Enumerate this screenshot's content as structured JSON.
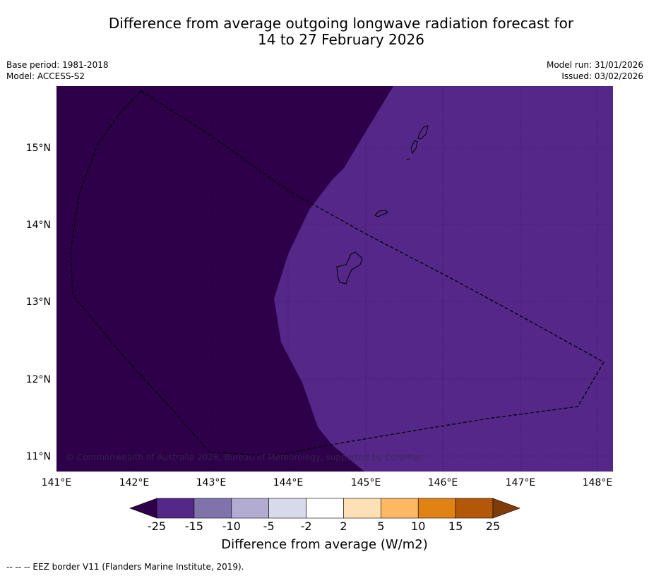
{
  "title": {
    "line1": "Difference from average outgoing longwave radiation forecast for",
    "line2": "14 to 27 February 2026"
  },
  "meta": {
    "base_period": "Base period: 1981-2018",
    "model": "Model: ACCESS-S2",
    "model_run": "Model run: 31/01/2026",
    "issued": "Issued: 03/02/2026"
  },
  "map": {
    "lon_labels": [
      "141°E",
      "142°E",
      "143°E",
      "144°E",
      "145°E",
      "146°E",
      "147°E",
      "148°E"
    ],
    "lat_labels": [
      "15°N",
      "14°N",
      "13°N",
      "12°N",
      "11°N"
    ],
    "region_colors": {
      "strong_negative": "#2d0049",
      "moderate_negative": "#542788"
    },
    "copyright": "© Commonwealth of Australia 2026, Bureau of Meteorology, supported by COSPPac"
  },
  "colorbar": {
    "title": "Difference from average (W/m2)",
    "labels": [
      "-25",
      "-15",
      "-10",
      "-5",
      "-2",
      "2",
      "5",
      "10",
      "15",
      "25"
    ],
    "colors": [
      "#2d0049",
      "#542788",
      "#8073ac",
      "#b2abd2",
      "#d8daeb",
      "#ffffff",
      "#fee0b6",
      "#fdb863",
      "#e08214",
      "#b35806",
      "#7f3b08"
    ]
  },
  "footer": "--  --  -- EEZ border V11 (Flanders Marine Institute, 2019)."
}
